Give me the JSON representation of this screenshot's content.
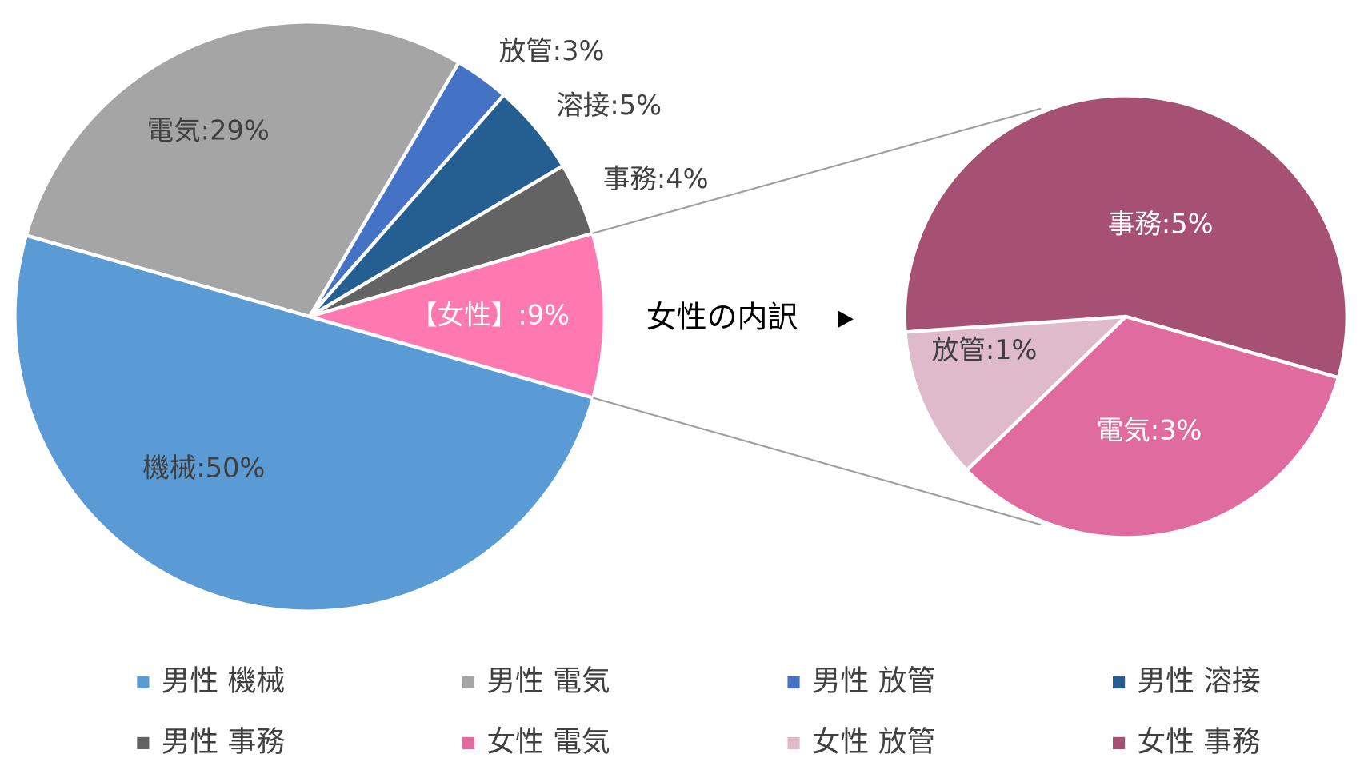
{
  "chart_data": {
    "type": "pie_of_pie",
    "annotation": "女性の内訳",
    "main": {
      "categories": [
        "男性 機械",
        "男性 電気",
        "男性 放管",
        "男性 溶接",
        "男性 事務",
        null
      ],
      "values": [
        50,
        29,
        3,
        5,
        4,
        9
      ],
      "value_labels": [
        "機械:50%",
        "電気:29%",
        "放管:3%",
        "溶接:5%",
        "事務:4%",
        "【女性】:9%"
      ],
      "colors": [
        "#5b9bd5",
        "#a5a5a5",
        "#4472c4",
        "#255e91",
        "#636363",
        "#ff78b0"
      ]
    },
    "sub": {
      "categories": [
        "女性 電気",
        "女性 放管",
        "女性 事務"
      ],
      "values": [
        3,
        1,
        5
      ],
      "value_labels": [
        "電気:3%",
        "放管:1%",
        "事務:5%"
      ],
      "colors": [
        "#e06c9f",
        "#dfbacb",
        "#a65073"
      ]
    },
    "legend": true
  }
}
